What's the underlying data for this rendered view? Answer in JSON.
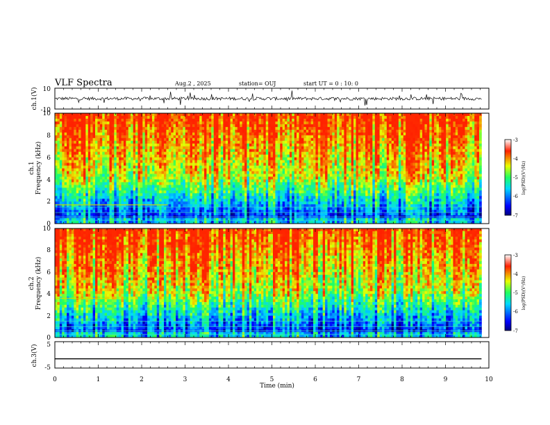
{
  "header": {
    "title": "VLF Spectra",
    "date": "Aug.2  , 2025",
    "station": "station= OUJ",
    "start": "start  UT =   0 : 10: 0"
  },
  "chart_data": [
    {
      "type": "line",
      "name": "ch1-waveform",
      "ylabel": "ch.1(V)",
      "ylim": [
        -10,
        10
      ],
      "yticks": [
        "10",
        "-10"
      ],
      "xlim": [
        0,
        10
      ],
      "baseline": 0,
      "noise_amplitude": 1.5
    },
    {
      "type": "heatmap",
      "name": "ch1-spectrogram",
      "ylabel": "ch.1",
      "ylabel2": "Frequency  (kHz)",
      "ylim": [
        0,
        10
      ],
      "yticks": [
        "0",
        "2",
        "4",
        "6",
        "8",
        "10"
      ],
      "xlim": [
        0,
        9.83
      ],
      "colorbar": {
        "label": "log(PSD)(V²/Hz)",
        "range": [
          -7,
          -3
        ],
        "ticks": [
          "-3",
          "-4",
          "-5",
          "-6",
          "-7"
        ]
      }
    },
    {
      "type": "heatmap",
      "name": "ch2-spectrogram",
      "ylabel": "ch.2",
      "ylabel2": "Frequency  (kHz)",
      "ylim": [
        0,
        10
      ],
      "yticks": [
        "0",
        "2",
        "4",
        "6",
        "8",
        "10"
      ],
      "xlim": [
        0,
        9.83
      ],
      "colorbar": {
        "label": "log(PSD)(V²/Hz)",
        "range": [
          -7,
          -3
        ],
        "ticks": [
          "-3",
          "-4",
          "-5",
          "-6",
          "-7"
        ]
      }
    },
    {
      "type": "line",
      "name": "ch3-waveform",
      "ylabel": "ch.3(V)",
      "ylim": [
        -5,
        5
      ],
      "yticks": [
        "5",
        "-5"
      ],
      "xlim": [
        0,
        10
      ],
      "baseline": -1.5
    }
  ],
  "xaxis": {
    "label": "Time  (min)",
    "ticks": [
      "0",
      "1",
      "2",
      "3",
      "4",
      "5",
      "6",
      "7",
      "8",
      "9",
      "10"
    ]
  }
}
